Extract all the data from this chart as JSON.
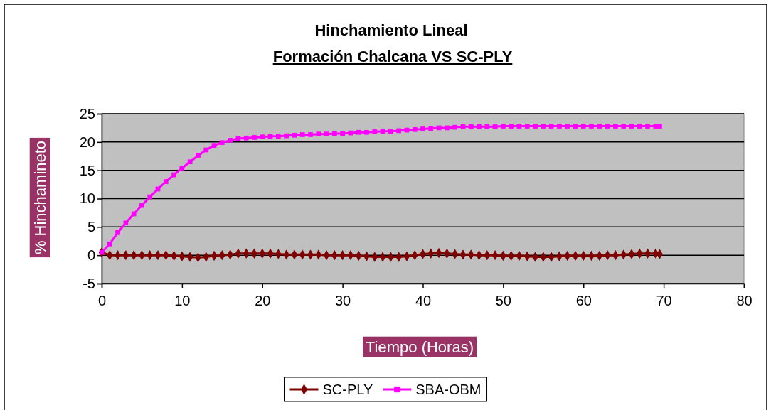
{
  "chart_data": {
    "type": "line",
    "title": "Hinchamiento Lineal",
    "subtitle": "Formación Chalcana VS  SC-PLY",
    "xlabel": "Tiempo (Horas)",
    "ylabel": "% Hinchamineto",
    "x": [
      0,
      1,
      2,
      3,
      4,
      5,
      6,
      7,
      8,
      9,
      10,
      11,
      12,
      13,
      14,
      15,
      16,
      17,
      18,
      19,
      20,
      21,
      22,
      23,
      24,
      25,
      26,
      27,
      28,
      29,
      30,
      31,
      32,
      33,
      34,
      35,
      36,
      37,
      38,
      39,
      40,
      41,
      42,
      43,
      44,
      45,
      46,
      47,
      48,
      49,
      50,
      51,
      52,
      53,
      54,
      55,
      56,
      57,
      58,
      59,
      60,
      61,
      62,
      63,
      64,
      65,
      66,
      67,
      68,
      69,
      69.5
    ],
    "series": [
      {
        "name": "SC-PLY",
        "color": "#800000",
        "marker": "diamond",
        "values": [
          0.5,
          0,
          0,
          0,
          0,
          0,
          0,
          0,
          0,
          -0.1,
          -0.2,
          -0.3,
          -0.4,
          -0.3,
          -0.1,
          0,
          0.1,
          0.3,
          0.3,
          0.3,
          0.3,
          0.3,
          0.2,
          0.1,
          0.1,
          0.1,
          0.1,
          0.1,
          0,
          0,
          0,
          0,
          -0.1,
          -0.2,
          -0.3,
          -0.3,
          -0.3,
          -0.3,
          -0.2,
          0,
          0.2,
          0.3,
          0.4,
          0.3,
          0.2,
          0.1,
          0.1,
          0,
          0,
          0,
          -0.1,
          -0.1,
          -0.1,
          -0.2,
          -0.3,
          -0.3,
          -0.3,
          -0.2,
          -0.1,
          -0.1,
          -0.1,
          -0.1,
          -0.1,
          0,
          0,
          0.1,
          0.2,
          0.3,
          0.3,
          0.3,
          0.2
        ]
      },
      {
        "name": "SBA-OBM",
        "color": "#ff00ff",
        "marker": "square",
        "values": [
          0.5,
          2,
          4,
          5.7,
          7.3,
          8.8,
          10.3,
          11.7,
          13,
          14.2,
          15.4,
          16.5,
          17.6,
          18.6,
          19.4,
          19.9,
          20.3,
          20.6,
          20.7,
          20.8,
          20.9,
          21,
          21,
          21.1,
          21.2,
          21.3,
          21.3,
          21.4,
          21.4,
          21.5,
          21.5,
          21.6,
          21.7,
          21.7,
          21.8,
          21.9,
          21.9,
          22,
          22.1,
          22.2,
          22.3,
          22.4,
          22.5,
          22.5,
          22.6,
          22.7,
          22.7,
          22.7,
          22.7,
          22.7,
          22.8,
          22.8,
          22.8,
          22.8,
          22.8,
          22.8,
          22.8,
          22.8,
          22.8,
          22.8,
          22.8,
          22.8,
          22.8,
          22.8,
          22.8,
          22.8,
          22.8,
          22.8,
          22.8,
          22.8,
          22.8
        ]
      }
    ],
    "xlim": [
      0,
      80
    ],
    "xticks": [
      0,
      10,
      20,
      30,
      40,
      50,
      60,
      70,
      80
    ],
    "ylim": [
      -5,
      25
    ],
    "yticks": [
      -5,
      0,
      5,
      10,
      15,
      20,
      25
    ],
    "grid": "y",
    "legend": "bottom"
  }
}
